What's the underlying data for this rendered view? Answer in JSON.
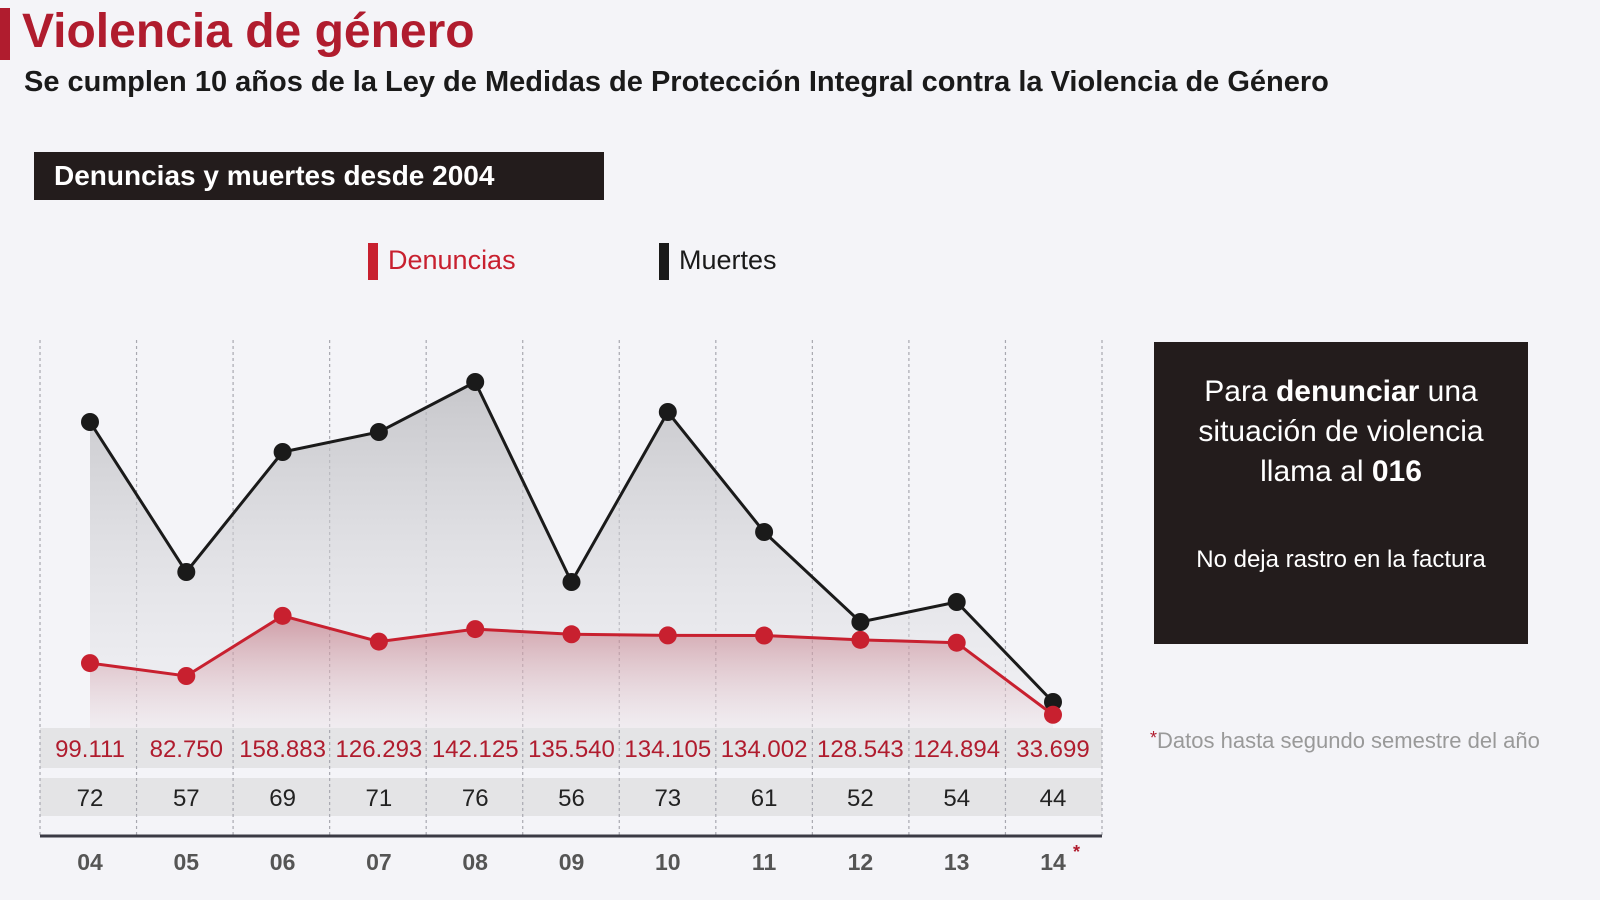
{
  "header": {
    "title": "Violencia de género",
    "subtitle": "Se cumplen 10 años de la Ley de Medidas de Protección Integral contra la Violencia de Género"
  },
  "colors": {
    "accent": "#b01c2e",
    "dark": "#231c1c",
    "background": "#f4f4f8"
  },
  "info_box": {
    "line1_pre": "Para ",
    "line1_bold": "denunciar",
    "line1_post": " una",
    "line2": "situación de violencia",
    "line3_pre": "llama al ",
    "line3_bold": "016",
    "note": "No deja rastro en la factura"
  },
  "footnote": {
    "marker": "*",
    "text": "Datos hasta segundo semestre del año"
  },
  "chart_data": {
    "type": "line",
    "title": "Denuncias y muertes desde 2004",
    "categories": [
      "04",
      "05",
      "06",
      "07",
      "08",
      "09",
      "10",
      "11",
      "12",
      "13",
      "14"
    ],
    "category_marker": {
      "index": 10,
      "symbol": "*"
    },
    "legend_placement": "top",
    "grid": "vertical dashed",
    "series": [
      {
        "name": "Denuncias",
        "color": "#c8202f",
        "values": [
          99111,
          82750,
          158883,
          126293,
          142125,
          135540,
          134105,
          134002,
          128543,
          124894,
          33699
        ],
        "labels": [
          "99.111",
          "82.750",
          "158.883",
          "126.293",
          "142.125",
          "135.540",
          "134.105",
          "134.002",
          "128.543",
          "124.894",
          "33.699"
        ]
      },
      {
        "name": "Muertes",
        "color": "#1a1a1a",
        "values": [
          72,
          57,
          69,
          71,
          76,
          56,
          73,
          61,
          52,
          54,
          44
        ],
        "labels": [
          "72",
          "57",
          "69",
          "71",
          "76",
          "56",
          "73",
          "61",
          "52",
          "54",
          "44"
        ]
      }
    ]
  }
}
